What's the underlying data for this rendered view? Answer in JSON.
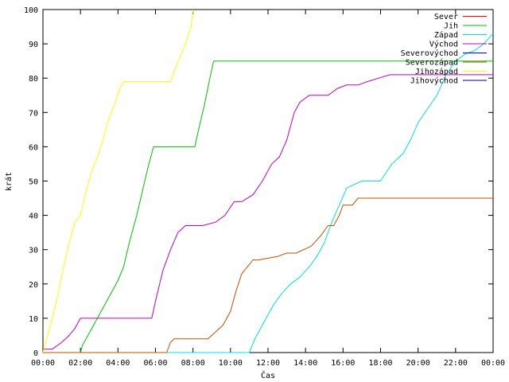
{
  "chart_data": {
    "type": "line",
    "xlabel": "Čas",
    "ylabel": "krát",
    "xlim": [
      0,
      24
    ],
    "ylim": [
      0,
      100
    ],
    "x_ticks": [
      0,
      2,
      4,
      6,
      8,
      10,
      12,
      14,
      16,
      18,
      20,
      22,
      24
    ],
    "x_tick_labels": [
      "00:00",
      "02:00",
      "04:00",
      "06:00",
      "08:00",
      "10:00",
      "12:00",
      "14:00",
      "16:00",
      "18:00",
      "20:00",
      "22:00",
      "00:00"
    ],
    "y_ticks": [
      0,
      10,
      20,
      30,
      40,
      50,
      60,
      70,
      80,
      90,
      100
    ],
    "y_tick_labels": [
      "0",
      "10",
      "20",
      "30",
      "40",
      "50",
      "60",
      "70",
      "80",
      "90",
      "100"
    ],
    "legend_position": "top-right",
    "grid": false,
    "series": [
      {
        "name": "Sever",
        "color": "#ff0000",
        "x": [],
        "y": []
      },
      {
        "name": "Jih",
        "color": "#00c000",
        "x": [
          0,
          2,
          2.1,
          2.4,
          2.7,
          3.0,
          3.4,
          3.7,
          4.0,
          4.3,
          4.6,
          5.0,
          5.3,
          5.6,
          5.9,
          8.1,
          8.3,
          8.6,
          8.9,
          9.1,
          24
        ],
        "y": [
          0,
          0,
          2,
          5,
          8,
          11,
          15,
          18,
          21,
          25,
          32,
          40,
          47,
          54,
          60,
          60,
          65,
          72,
          80,
          85,
          85
        ]
      },
      {
        "name": "Západ",
        "color": "#00e0e0",
        "x": [
          0,
          11.0,
          11.3,
          11.7,
          12.0,
          12.3,
          12.7,
          13.2,
          13.7,
          14.2,
          14.6,
          15.0,
          15.4,
          15.8,
          16.2,
          17.0,
          18.0,
          18.6,
          19.2,
          19.6,
          20.0,
          20.5,
          21.0,
          21.5,
          22.0,
          22.5,
          23.0,
          23.5,
          24
        ],
        "y": [
          0,
          0,
          4,
          8,
          11,
          14,
          17,
          20,
          22,
          25,
          28,
          32,
          38,
          43,
          48,
          50,
          50,
          55,
          58,
          62,
          67,
          71,
          75,
          81,
          85,
          87,
          88,
          90,
          93
        ]
      },
      {
        "name": "Východ",
        "color": "#c000c0",
        "x": [
          0,
          0.5,
          1.0,
          1.4,
          1.7,
          2.0,
          5.8,
          6.0,
          6.4,
          6.8,
          7.2,
          7.6,
          8.5,
          9.2,
          9.7,
          10.2,
          10.6,
          11.2,
          11.7,
          12.2,
          12.6,
          13.0,
          13.4,
          13.7,
          14.2,
          14.8,
          15.2,
          15.7,
          16.2,
          16.8,
          17.3,
          17.9,
          18.5,
          19.5,
          20.5,
          21.5,
          22.5,
          23.2,
          23.6,
          24
        ],
        "y": [
          1,
          1,
          3,
          5,
          7,
          10,
          10,
          15,
          24,
          30,
          35,
          37,
          37,
          38,
          40,
          44,
          44,
          46,
          50,
          55,
          57,
          62,
          70,
          73,
          75,
          75,
          75,
          77,
          78,
          78,
          79,
          80,
          81,
          81,
          81,
          81,
          81,
          81,
          81,
          81
        ]
      },
      {
        "name": "Severovýchod",
        "color": "#0000ff",
        "x": [],
        "y": []
      },
      {
        "name": "Severozápad",
        "color": "#c05000",
        "x": [
          0,
          6.6,
          6.8,
          7.0,
          8.8,
          9.2,
          9.6,
          10.0,
          10.3,
          10.6,
          10.9,
          11.2,
          11.5,
          12.5,
          13.0,
          13.5,
          14.3,
          14.8,
          15.2,
          15.5,
          15.8,
          16.0,
          16.5,
          16.8,
          17.5,
          24
        ],
        "y": [
          0,
          0,
          3,
          4,
          4,
          6,
          8,
          12,
          18,
          23,
          25,
          27,
          27,
          28,
          29,
          29,
          31,
          34,
          37,
          37,
          40,
          43,
          43,
          45,
          45,
          45
        ]
      },
      {
        "name": "Jihozápad",
        "color": "#ffff00",
        "x": [
          0,
          0.2,
          0.5,
          0.8,
          1.1,
          1.4,
          1.7,
          2.0,
          2.3,
          2.6,
          2.9,
          3.2,
          3.5,
          3.8,
          4.1,
          4.3,
          6.8,
          7.0,
          7.3,
          7.6,
          7.9,
          8.0
        ],
        "y": [
          0,
          4,
          10,
          17,
          25,
          32,
          38,
          40,
          47,
          53,
          57,
          62,
          68,
          72,
          77,
          79,
          79,
          82,
          86,
          90,
          95,
          100
        ]
      },
      {
        "name": "Jihovýchod",
        "color": "#000080",
        "x": [],
        "y": []
      }
    ]
  }
}
